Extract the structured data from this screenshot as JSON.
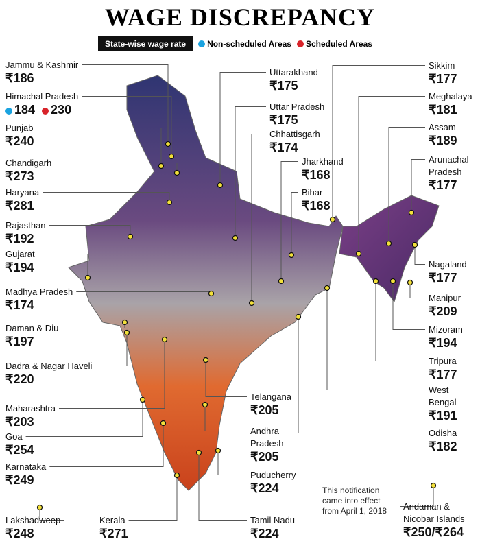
{
  "header": {
    "title": "WAGE DISCREPANCY",
    "subtitle": "State-wise wage rate"
  },
  "legend": [
    "Non-scheduled Areas",
    "Scheduled Areas"
  ],
  "states": [
    {
      "name": "Jammu & Kashmir",
      "wage": "₹186"
    },
    {
      "name": "Himachal Pradesh",
      "wage_non_scheduled": "184",
      "wage_scheduled": "230"
    },
    {
      "name": "Punjab",
      "wage": "₹240"
    },
    {
      "name": "Chandigarh",
      "wage": "₹273"
    },
    {
      "name": "Haryana",
      "wage": "₹281"
    },
    {
      "name": "Rajasthan",
      "wage": "₹192"
    },
    {
      "name": "Gujarat",
      "wage": "₹194"
    },
    {
      "name": "Madhya Pradesh",
      "wage": "₹174"
    },
    {
      "name": "Daman & Diu",
      "wage": "₹197"
    },
    {
      "name": "Dadra & Nagar Haveli",
      "wage": "₹220"
    },
    {
      "name": "Maharashtra",
      "wage": "₹203"
    },
    {
      "name": "Goa",
      "wage": "₹254"
    },
    {
      "name": "Karnataka",
      "wage": "₹249"
    },
    {
      "name": "Lakshadweep",
      "wage": "₹248"
    },
    {
      "name": "Kerala",
      "wage": "₹271"
    },
    {
      "name": "Tamil Nadu",
      "wage": "₹224"
    },
    {
      "name": "Puducherry",
      "wage": "₹224"
    },
    {
      "name": "Andhra Pradesh",
      "wage": "₹205"
    },
    {
      "name": "Telangana",
      "wage": "₹205"
    },
    {
      "name": "Uttarakhand",
      "wage": "₹175"
    },
    {
      "name": "Uttar Pradesh",
      "wage": "₹175"
    },
    {
      "name": "Chhattisgarh",
      "wage": "₹174"
    },
    {
      "name": "Jharkhand",
      "wage": "₹168"
    },
    {
      "name": "Bihar",
      "wage": "₹168"
    },
    {
      "name": "Sikkim",
      "wage": "₹177"
    },
    {
      "name": "Meghalaya",
      "wage": "₹181"
    },
    {
      "name": "Assam",
      "wage": "₹189"
    },
    {
      "name": "Arunachal Pradesh",
      "wage": "₹177"
    },
    {
      "name": "Nagaland",
      "wage": "₹177"
    },
    {
      "name": "Manipur",
      "wage": "₹209"
    },
    {
      "name": "Mizoram",
      "wage": "₹194"
    },
    {
      "name": "Tripura",
      "wage": "₹177"
    },
    {
      "name": "West Bengal",
      "wage": "₹191"
    },
    {
      "name": "Odisha",
      "wage": "₹182"
    },
    {
      "name": "Andaman & Nicobar Islands",
      "wage": "₹250/₹264"
    }
  ],
  "note": "This notification came into effect from April 1, 2018"
}
